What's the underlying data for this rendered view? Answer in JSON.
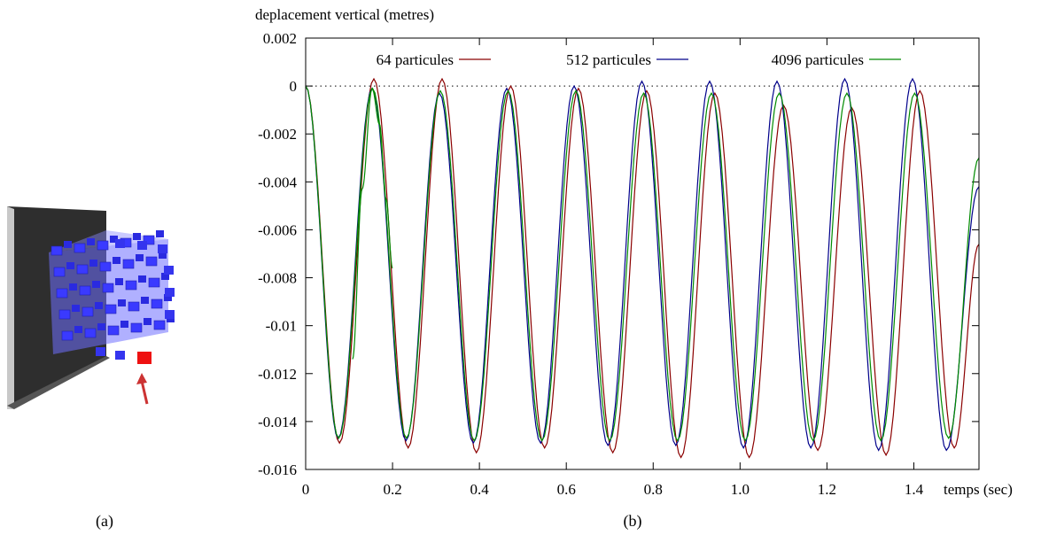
{
  "panels": {
    "a_caption": "(a)",
    "b_caption": "(b)"
  },
  "colors": {
    "series_64": "#8b0000",
    "series_512": "#00008b",
    "series_4096": "#008b00",
    "cube_blue": "#3a3aff",
    "marker_red": "#ee1111",
    "arrow_red": "#cc3333",
    "wall": "#2e2e2e"
  },
  "chart_data": {
    "type": "line",
    "ylabel": "deplacement vertical (metres)",
    "xlabel": "temps (sec)",
    "xlim": [
      0,
      1.55
    ],
    "ylim": [
      -0.016,
      0.002
    ],
    "xticks": [
      "0",
      "0.2",
      "0.4",
      "0.6",
      "0.8",
      "1.0",
      "1.2",
      "1.4"
    ],
    "xtick_values": [
      0,
      0.2,
      0.4,
      0.6,
      0.8,
      1.0,
      1.2,
      1.4
    ],
    "yticks": [
      "0.002",
      "0",
      "-0.002",
      "-0.004",
      "-0.006",
      "-0.008",
      "-0.01",
      "-0.012",
      "-0.014",
      "-0.016"
    ],
    "ytick_values": [
      0.002,
      0,
      -0.002,
      -0.004,
      -0.006,
      -0.008,
      -0.01,
      -0.012,
      -0.014,
      -0.016
    ],
    "reference_line": 0,
    "legend_position": "top, horizontal",
    "series": [
      {
        "name": "64 particules",
        "color": "#8b0000",
        "x": [
          0,
          0.078,
          0.157,
          0.236,
          0.314,
          0.393,
          0.472,
          0.55,
          0.628,
          0.707,
          0.785,
          0.864,
          0.942,
          1.021,
          1.1,
          1.179,
          1.257,
          1.336,
          1.414,
          1.493,
          1.55
        ],
        "y": [
          0,
          -0.0149,
          0.0003,
          -0.0151,
          0.0003,
          -0.0153,
          0.0,
          -0.0151,
          -0.0001,
          -0.0153,
          -0.0002,
          -0.0155,
          -0.0003,
          -0.0155,
          -0.0008,
          -0.0152,
          -0.0009,
          -0.0154,
          -0.0002,
          -0.0151,
          -0.0066
        ]
      },
      {
        "name": "512 particules",
        "color": "#00008b",
        "x": [
          0,
          0.075,
          0.153,
          0.231,
          0.308,
          0.386,
          0.463,
          0.541,
          0.618,
          0.696,
          0.774,
          0.852,
          0.93,
          1.008,
          1.085,
          1.163,
          1.241,
          1.319,
          1.397,
          1.475,
          1.55
        ],
        "y": [
          0,
          -0.0147,
          -0.0001,
          -0.0148,
          -0.0003,
          -0.0149,
          -0.0001,
          -0.0149,
          0.0,
          -0.015,
          0.0002,
          -0.015,
          0.0002,
          -0.0151,
          0.0002,
          -0.0151,
          0.0003,
          -0.0152,
          0.0003,
          -0.0152,
          -0.0042
        ]
      },
      {
        "name": "4096 particules",
        "color": "#008b00",
        "x": [
          0,
          0.076,
          0.154,
          0.232,
          0.31,
          0.388,
          0.466,
          0.544,
          0.622,
          0.7,
          0.778,
          0.856,
          0.934,
          1.012,
          1.09,
          1.168,
          1.246,
          1.324,
          1.402,
          1.48,
          1.55
        ],
        "y": [
          0,
          -0.0147,
          -0.0001,
          -0.0147,
          -0.0002,
          -0.0148,
          -0.0002,
          -0.0148,
          -0.0002,
          -0.0148,
          -0.0003,
          -0.0148,
          -0.0003,
          -0.0148,
          -0.0003,
          -0.0148,
          -0.0003,
          -0.0148,
          -0.0003,
          -0.0147,
          -0.003
        ]
      }
    ],
    "extra_segment": {
      "name": "4096 particules",
      "x": [
        0.108,
        0.13,
        0.153,
        0.17,
        0.185,
        0.2
      ],
      "y": [
        -0.0114,
        -0.0043,
        -0.0001,
        -0.0016,
        -0.0047,
        -0.0076
      ]
    }
  }
}
